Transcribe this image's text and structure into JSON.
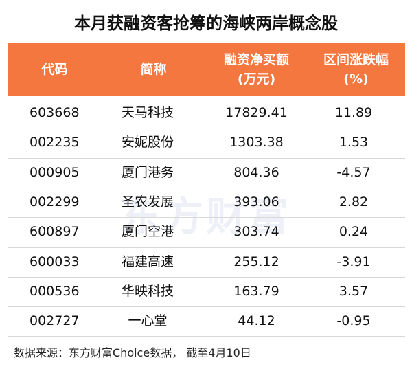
{
  "title": "本月获融资客抢筹的海峡两岸概念股",
  "table": {
    "header": [
      [
        "代码"
      ],
      [
        "简称"
      ],
      [
        "融资净买额",
        "(万元)"
      ],
      [
        "区间涨跌幅",
        "(%)"
      ]
    ],
    "rows": [
      [
        "603668",
        "天马科技",
        "17829.41",
        "11.89"
      ],
      [
        "002235",
        "安妮股份",
        "1303.38",
        "1.53"
      ],
      [
        "000905",
        "厦门港务",
        "804.36",
        "-4.57"
      ],
      [
        "002299",
        "圣农发展",
        "393.06",
        "2.82"
      ],
      [
        "600897",
        "厦门空港",
        "303.74",
        "0.24"
      ],
      [
        "600033",
        "福建高速",
        "255.12",
        "-3.91"
      ],
      [
        "000536",
        "华映科技",
        "163.79",
        "3.57"
      ],
      [
        "002727",
        "一心堂",
        "44.12",
        "-0.95"
      ]
    ]
  },
  "watermark": "东方财富",
  "footer": "数据来源：东方财富Choice数据， 截至4月10日"
}
